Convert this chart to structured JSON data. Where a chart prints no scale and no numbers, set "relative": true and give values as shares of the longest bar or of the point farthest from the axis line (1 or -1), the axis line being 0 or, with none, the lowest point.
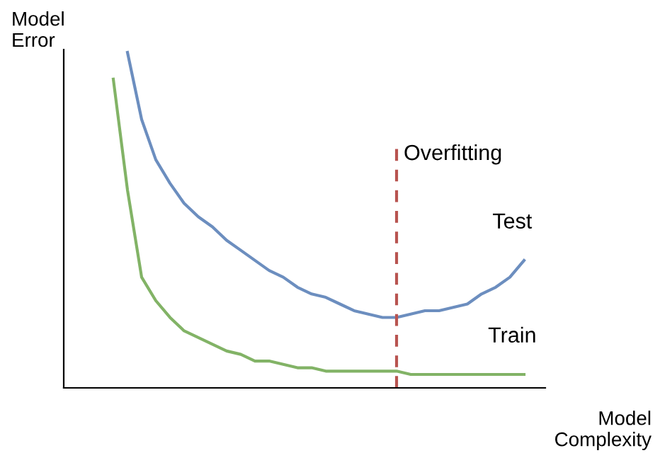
{
  "chart_data": {
    "type": "line",
    "relative": true,
    "xlabel": "Model\nComplexity",
    "ylabel": "Model\nError",
    "categories": [
      null,
      null,
      null,
      null,
      null,
      null,
      null,
      null,
      null,
      null,
      null,
      null,
      null,
      null,
      null,
      null,
      null,
      null,
      null,
      null,
      null,
      null,
      null,
      null,
      null,
      null,
      null,
      null,
      null,
      null
    ],
    "series": [
      {
        "name": "Test",
        "color": "#6c8ebf",
        "values": [
          null,
          1.0,
          0.8,
          0.68,
          0.61,
          0.55,
          0.51,
          0.48,
          0.44,
          0.41,
          0.38,
          0.35,
          0.33,
          0.3,
          0.28,
          0.27,
          0.25,
          0.23,
          0.22,
          0.21,
          0.21,
          0.22,
          0.23,
          0.23,
          0.24,
          0.25,
          0.28,
          0.3,
          0.33,
          0.38
        ]
      },
      {
        "name": "Train",
        "color": "#82b366",
        "values": [
          0.92,
          0.59,
          0.33,
          0.26,
          0.21,
          0.17,
          0.15,
          0.13,
          0.11,
          0.1,
          0.08,
          0.08,
          0.07,
          0.06,
          0.06,
          0.05,
          0.05,
          0.05,
          0.05,
          0.05,
          0.05,
          0.04,
          0.04,
          0.04,
          0.04,
          0.04,
          0.04,
          0.04,
          0.04,
          0.04
        ]
      }
    ],
    "annotations": [
      "Overfitting"
    ]
  }
}
